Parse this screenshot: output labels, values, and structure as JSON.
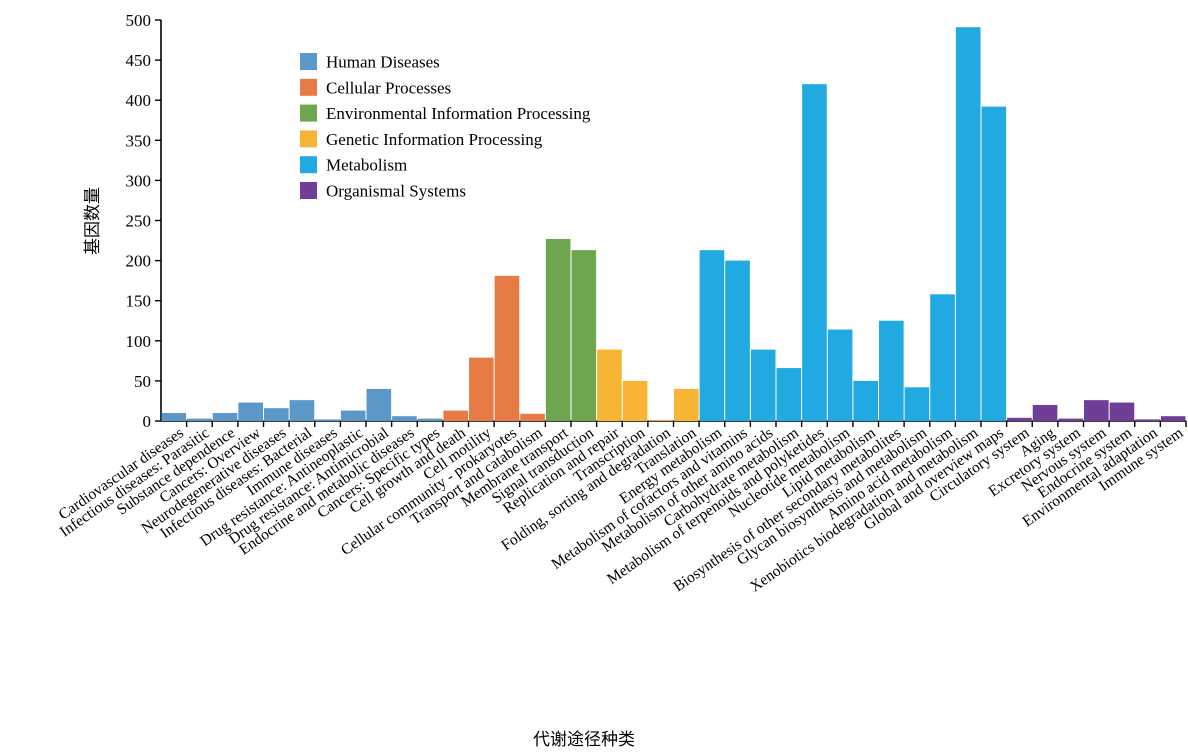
{
  "chart_data": {
    "type": "bar",
    "title": "",
    "xlabel": "代谢途径种类",
    "ylabel": "基因数量",
    "ylim": [
      0,
      500
    ],
    "yticks": [
      0,
      50,
      100,
      150,
      200,
      250,
      300,
      350,
      400,
      450,
      500
    ],
    "grid": false,
    "legend_position": "top-left",
    "groups": [
      {
        "name": "Human Diseases",
        "color": "#5b97c9"
      },
      {
        "name": "Cellular Processes",
        "color": "#e77b45"
      },
      {
        "name": "Environmental Information Processing",
        "color": "#6ea54f"
      },
      {
        "name": "Genetic Information Processing",
        "color": "#f8b535"
      },
      {
        "name": "Metabolism",
        "color": "#21a9e1"
      },
      {
        "name": "Organismal Systems",
        "color": "#6f3f98"
      }
    ],
    "categories": [
      "Cardiovascular diseases",
      "Infectious diseases: Parasitic",
      "Substance dependence",
      "Cancers: Overview",
      "Neurodegenerative diseases",
      "Infectious diseases: Bacterial",
      "Immune diseases",
      "Drug resistance: Antineoplastic",
      "Drug resistance: Antimicrobial",
      "Endocrine and metabolic diseases",
      "Cancers: Specific types",
      "Cell growth and death",
      "Cell motility",
      "Cellular community - prokaryotes",
      "Transport and catabolism",
      "Membrane transport",
      "Signal transduction",
      "Replication and repair",
      "Transcription",
      "Folding, sorting and degradation",
      "Translation",
      "Energy metabolism",
      "Metabolism of cofactors and vitamins",
      "Metabolism of other amino acids",
      "Carbohydrate metabolism",
      "Metabolism of terpenoids and polyketides",
      "Nucleotide metabolism",
      "Lipid metabolism",
      "Biosynthesis of other secondary metabolites",
      "Glycan biosynthesis and metabolism",
      "Amino acid metabolism",
      "Xenobiotics biodegradation and metabolism",
      "Global and overview maps",
      "Circulatory system",
      "Aging",
      "Excretory system",
      "Nervous system",
      "Endocrine system",
      "Environmental adaptation",
      "Immune system"
    ],
    "category_groups": [
      0,
      0,
      0,
      0,
      0,
      0,
      0,
      0,
      0,
      0,
      0,
      1,
      1,
      1,
      1,
      2,
      2,
      3,
      3,
      3,
      3,
      4,
      4,
      4,
      4,
      4,
      4,
      4,
      4,
      4,
      4,
      4,
      4,
      5,
      5,
      5,
      5,
      5,
      5,
      5
    ],
    "values": [
      10,
      3,
      10,
      23,
      16,
      26,
      2,
      13,
      40,
      6,
      3,
      13,
      79,
      181,
      9,
      227,
      213,
      89,
      50,
      1,
      40,
      213,
      200,
      89,
      66,
      420,
      114,
      50,
      125,
      42,
      158,
      491,
      392,
      4,
      20,
      3,
      26,
      23,
      2,
      6
    ]
  }
}
